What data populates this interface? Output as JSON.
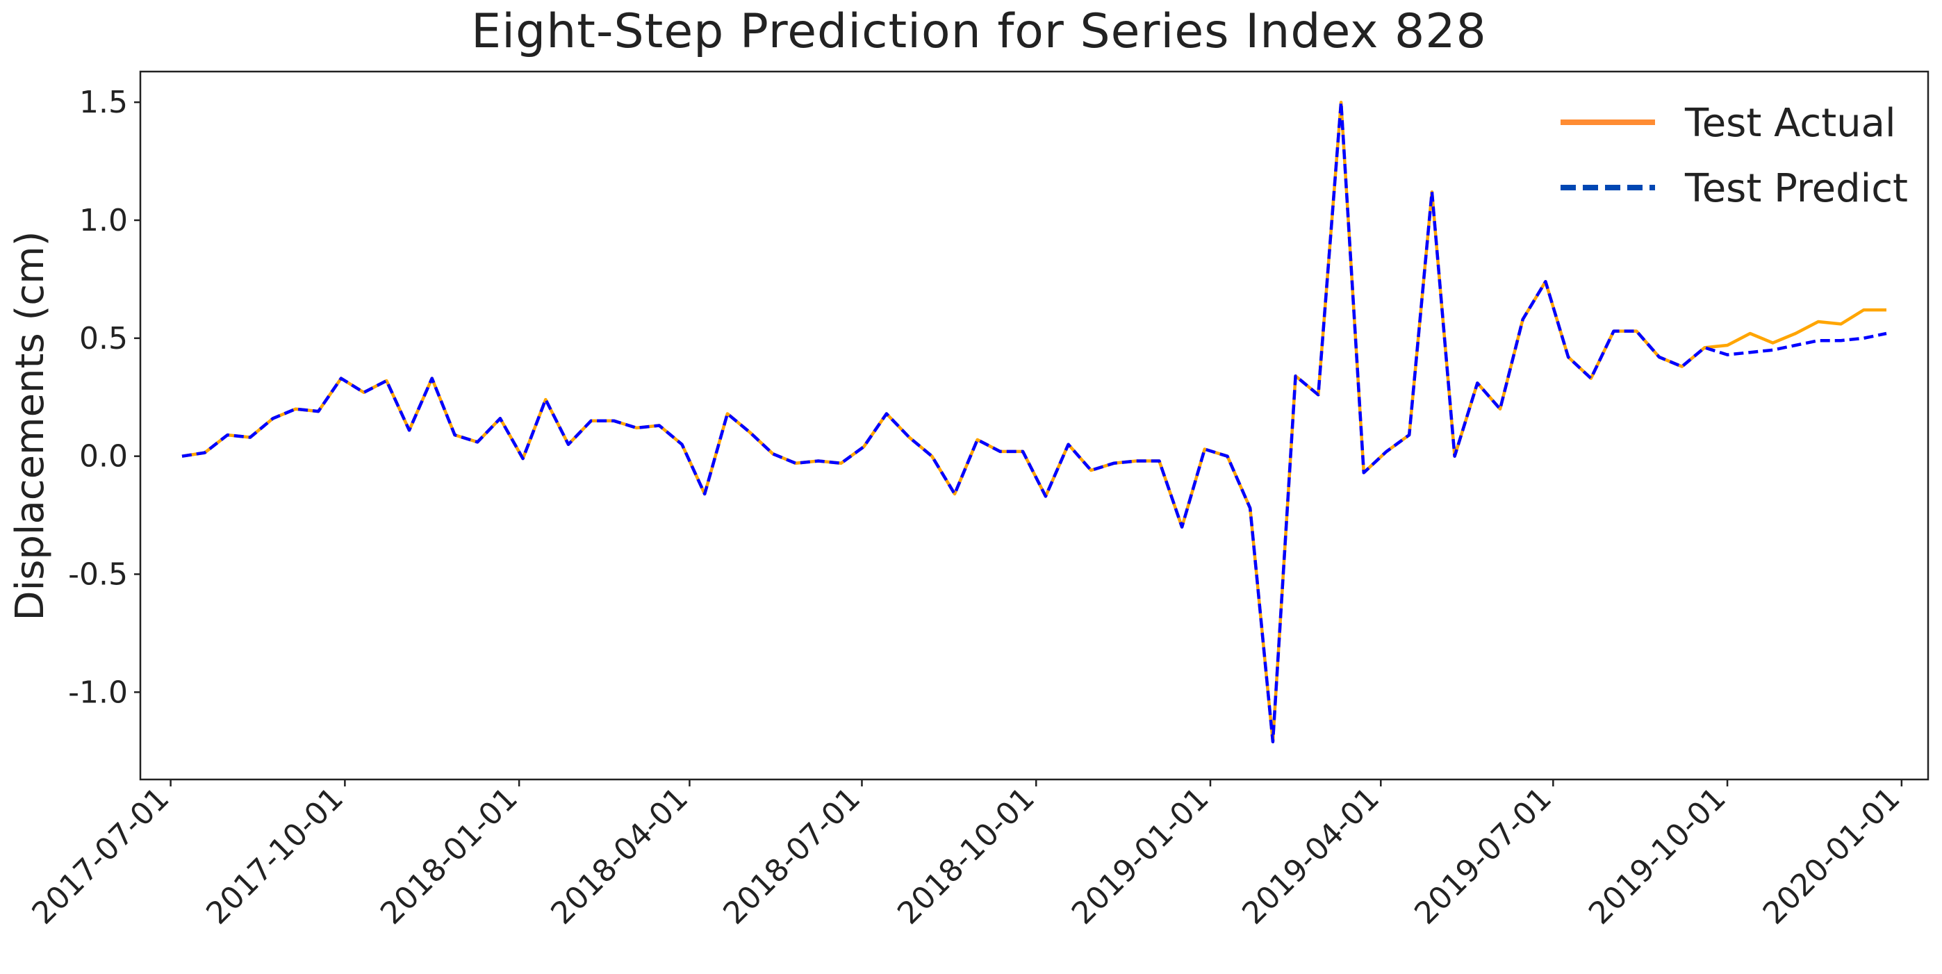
{
  "chart_data": {
    "type": "line",
    "title": "Eight-Step Prediction for Series Index 828",
    "xlabel": "",
    "ylabel": "Displacements (cm)",
    "x_tick_labels": [
      "2017-07-01",
      "2017-10-01",
      "2018-01-01",
      "2018-04-01",
      "2018-07-01",
      "2018-10-01",
      "2019-01-01",
      "2019-04-01",
      "2019-07-01",
      "2019-10-01",
      "2020-01-01"
    ],
    "y_tick_labels": [
      "1.5",
      "1.0",
      "0.5",
      "0.0",
      "-0.5",
      "-1.0"
    ],
    "y_ticks": [
      1.5,
      1.0,
      0.5,
      0.0,
      -0.5,
      -1.0
    ],
    "xlim": [
      "2017-06-15",
      "2020-01-15"
    ],
    "ylim": [
      -1.37,
      1.63
    ],
    "grid": false,
    "legend_position": "top-right",
    "series": [
      {
        "name": "Test Actual",
        "color": "#FFA500",
        "legend_color": "#FF8C33",
        "style": "solid",
        "points": [
          [
            "2017-07-07",
            0.0
          ],
          [
            "2017-07-19",
            0.015
          ],
          [
            "2017-07-31",
            0.09
          ],
          [
            "2017-08-12",
            0.08
          ],
          [
            "2017-08-24",
            0.16
          ],
          [
            "2017-09-05",
            0.2
          ],
          [
            "2017-09-17",
            0.19
          ],
          [
            "2017-09-29",
            0.33
          ],
          [
            "2017-10-11",
            0.27
          ],
          [
            "2017-10-23",
            0.32
          ],
          [
            "2017-11-04",
            0.11
          ],
          [
            "2017-11-16",
            0.33
          ],
          [
            "2017-11-28",
            0.09
          ],
          [
            "2017-12-10",
            0.06
          ],
          [
            "2017-12-22",
            0.16
          ],
          [
            "2018-01-03",
            -0.01
          ],
          [
            "2018-01-15",
            0.24
          ],
          [
            "2018-01-27",
            0.05
          ],
          [
            "2018-02-08",
            0.15
          ],
          [
            "2018-02-20",
            0.15
          ],
          [
            "2018-03-04",
            0.12
          ],
          [
            "2018-03-16",
            0.13
          ],
          [
            "2018-03-28",
            0.05
          ],
          [
            "2018-04-09",
            -0.16
          ],
          [
            "2018-04-21",
            0.18
          ],
          [
            "2018-05-03",
            0.1
          ],
          [
            "2018-05-15",
            0.01
          ],
          [
            "2018-05-27",
            -0.03
          ],
          [
            "2018-06-08",
            -0.02
          ],
          [
            "2018-06-20",
            -0.03
          ],
          [
            "2018-07-02",
            0.04
          ],
          [
            "2018-07-14",
            0.18
          ],
          [
            "2018-07-26",
            0.08
          ],
          [
            "2018-08-07",
            0.0
          ],
          [
            "2018-08-19",
            -0.16
          ],
          [
            "2018-08-31",
            0.07
          ],
          [
            "2018-09-12",
            0.02
          ],
          [
            "2018-09-24",
            0.02
          ],
          [
            "2018-10-06",
            -0.17
          ],
          [
            "2018-10-18",
            0.05
          ],
          [
            "2018-10-30",
            -0.06
          ],
          [
            "2018-11-11",
            -0.03
          ],
          [
            "2018-11-23",
            -0.02
          ],
          [
            "2018-12-05",
            -0.02
          ],
          [
            "2018-12-17",
            -0.3
          ],
          [
            "2018-12-29",
            0.03
          ],
          [
            "2019-01-10",
            0.0
          ],
          [
            "2019-01-22",
            -0.22
          ],
          [
            "2019-02-03",
            -1.21
          ],
          [
            "2019-02-15",
            0.34
          ],
          [
            "2019-02-27",
            0.26
          ],
          [
            "2019-03-11",
            1.5
          ],
          [
            "2019-03-23",
            -0.07
          ],
          [
            "2019-04-04",
            0.02
          ],
          [
            "2019-04-16",
            0.09
          ],
          [
            "2019-04-28",
            1.12
          ],
          [
            "2019-05-10",
            0.0
          ],
          [
            "2019-05-22",
            0.31
          ],
          [
            "2019-06-03",
            0.2
          ],
          [
            "2019-06-15",
            0.58
          ],
          [
            "2019-06-27",
            0.74
          ],
          [
            "2019-07-09",
            0.42
          ],
          [
            "2019-07-21",
            0.33
          ],
          [
            "2019-08-02",
            0.53
          ],
          [
            "2019-08-14",
            0.53
          ],
          [
            "2019-08-26",
            0.42
          ],
          [
            "2019-09-07",
            0.38
          ],
          [
            "2019-09-19",
            0.46
          ],
          [
            "2019-10-01",
            0.47
          ],
          [
            "2019-10-13",
            0.52
          ],
          [
            "2019-10-25",
            0.48
          ],
          [
            "2019-11-06",
            0.52
          ],
          [
            "2019-11-18",
            0.57
          ],
          [
            "2019-11-30",
            0.56
          ],
          [
            "2019-12-12",
            0.62
          ],
          [
            "2019-12-24",
            0.62
          ]
        ]
      },
      {
        "name": "Test Predict",
        "color": "#0000FF",
        "legend_color": "#0047B3",
        "style": "dashed",
        "points": [
          [
            "2017-07-07",
            0.0
          ],
          [
            "2017-07-19",
            0.015
          ],
          [
            "2017-07-31",
            0.09
          ],
          [
            "2017-08-12",
            0.08
          ],
          [
            "2017-08-24",
            0.16
          ],
          [
            "2017-09-05",
            0.2
          ],
          [
            "2017-09-17",
            0.19
          ],
          [
            "2017-09-29",
            0.33
          ],
          [
            "2017-10-11",
            0.27
          ],
          [
            "2017-10-23",
            0.32
          ],
          [
            "2017-11-04",
            0.11
          ],
          [
            "2017-11-16",
            0.33
          ],
          [
            "2017-11-28",
            0.09
          ],
          [
            "2017-12-10",
            0.06
          ],
          [
            "2017-12-22",
            0.16
          ],
          [
            "2018-01-03",
            -0.01
          ],
          [
            "2018-01-15",
            0.24
          ],
          [
            "2018-01-27",
            0.05
          ],
          [
            "2018-02-08",
            0.15
          ],
          [
            "2018-02-20",
            0.15
          ],
          [
            "2018-03-04",
            0.12
          ],
          [
            "2018-03-16",
            0.13
          ],
          [
            "2018-03-28",
            0.05
          ],
          [
            "2018-04-09",
            -0.16
          ],
          [
            "2018-04-21",
            0.18
          ],
          [
            "2018-05-03",
            0.1
          ],
          [
            "2018-05-15",
            0.01
          ],
          [
            "2018-05-27",
            -0.03
          ],
          [
            "2018-06-08",
            -0.02
          ],
          [
            "2018-06-20",
            -0.03
          ],
          [
            "2018-07-02",
            0.04
          ],
          [
            "2018-07-14",
            0.18
          ],
          [
            "2018-07-26",
            0.08
          ],
          [
            "2018-08-07",
            0.0
          ],
          [
            "2018-08-19",
            -0.16
          ],
          [
            "2018-08-31",
            0.07
          ],
          [
            "2018-09-12",
            0.02
          ],
          [
            "2018-09-24",
            0.02
          ],
          [
            "2018-10-06",
            -0.17
          ],
          [
            "2018-10-18",
            0.05
          ],
          [
            "2018-10-30",
            -0.06
          ],
          [
            "2018-11-11",
            -0.03
          ],
          [
            "2018-11-23",
            -0.02
          ],
          [
            "2018-12-05",
            -0.02
          ],
          [
            "2018-12-17",
            -0.3
          ],
          [
            "2018-12-29",
            0.03
          ],
          [
            "2019-01-10",
            0.0
          ],
          [
            "2019-01-22",
            -0.22
          ],
          [
            "2019-02-03",
            -1.21
          ],
          [
            "2019-02-15",
            0.34
          ],
          [
            "2019-02-27",
            0.26
          ],
          [
            "2019-03-11",
            1.5
          ],
          [
            "2019-03-23",
            -0.07
          ],
          [
            "2019-04-04",
            0.02
          ],
          [
            "2019-04-16",
            0.09
          ],
          [
            "2019-04-28",
            1.12
          ],
          [
            "2019-05-10",
            0.0
          ],
          [
            "2019-05-22",
            0.31
          ],
          [
            "2019-06-03",
            0.2
          ],
          [
            "2019-06-15",
            0.58
          ],
          [
            "2019-06-27",
            0.74
          ],
          [
            "2019-07-09",
            0.42
          ],
          [
            "2019-07-21",
            0.33
          ],
          [
            "2019-08-02",
            0.53
          ],
          [
            "2019-08-14",
            0.53
          ],
          [
            "2019-08-26",
            0.42
          ],
          [
            "2019-09-07",
            0.38
          ],
          [
            "2019-09-19",
            0.46
          ],
          [
            "2019-10-01",
            0.43
          ],
          [
            "2019-10-13",
            0.44
          ],
          [
            "2019-10-25",
            0.45
          ],
          [
            "2019-11-06",
            0.47
          ],
          [
            "2019-11-18",
            0.49
          ],
          [
            "2019-11-30",
            0.49
          ],
          [
            "2019-12-12",
            0.5
          ],
          [
            "2019-12-24",
            0.52
          ]
        ]
      }
    ]
  }
}
